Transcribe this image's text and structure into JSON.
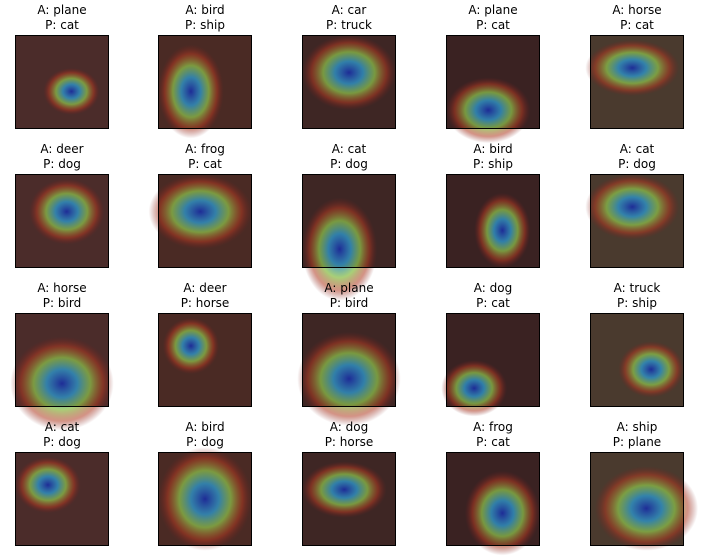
{
  "panels": [
    {
      "actual": "A: plane",
      "predicted": "P: cat"
    },
    {
      "actual": "A: bird",
      "predicted": "P: ship"
    },
    {
      "actual": "A: car",
      "predicted": "P: truck"
    },
    {
      "actual": "A: plane",
      "predicted": "P: cat"
    },
    {
      "actual": "A: horse",
      "predicted": "P: cat"
    },
    {
      "actual": "A: deer",
      "predicted": "P: dog"
    },
    {
      "actual": "A: frog",
      "predicted": "P: cat"
    },
    {
      "actual": "A: cat",
      "predicted": "P: dog"
    },
    {
      "actual": "A: bird",
      "predicted": "P: ship"
    },
    {
      "actual": "A: cat",
      "predicted": "P: dog"
    },
    {
      "actual": "A: horse",
      "predicted": "P: bird"
    },
    {
      "actual": "A: deer",
      "predicted": "P: horse"
    },
    {
      "actual": "A: plane",
      "predicted": "P: bird"
    },
    {
      "actual": "A: dog",
      "predicted": "P: cat"
    },
    {
      "actual": "A: truck",
      "predicted": "P: ship"
    },
    {
      "actual": "A: cat",
      "predicted": "P: dog"
    },
    {
      "actual": "A: bird",
      "predicted": "P: dog"
    },
    {
      "actual": "A: dog",
      "predicted": "P: horse"
    },
    {
      "actual": "A: frog",
      "predicted": "P: cat"
    },
    {
      "actual": "A: ship",
      "predicted": "P: plane"
    }
  ]
}
